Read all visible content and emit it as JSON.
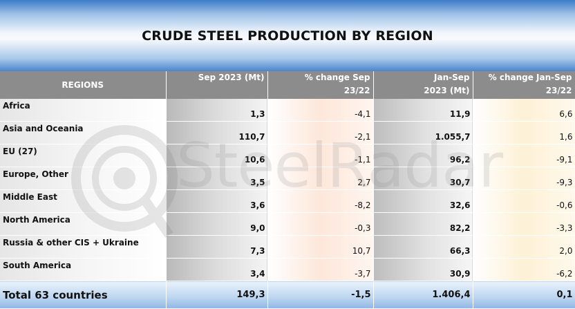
{
  "title": "CRUDE STEEL PRODUCTION BY REGION",
  "watermark": "SteelRadar",
  "headers": {
    "regions": "REGIONS",
    "sep": "Sep 2023 (Mt)",
    "pct_sep_1": "% change Sep",
    "pct_sep_2": "23/22",
    "jan_sep_1": "Jan-Sep",
    "jan_sep_2": "2023 (Mt)",
    "pct_jan_1": "% change Jan-Sep",
    "pct_jan_2": "23/22"
  },
  "rows": [
    {
      "region": "Africa",
      "sep": "1,3",
      "pct_sep": "-4,1",
      "jan_sep": "11,9",
      "pct_jan": "6,6"
    },
    {
      "region": "Asia and Oceania",
      "sep": "110,7",
      "pct_sep": "-2,1",
      "jan_sep": "1.055,7",
      "pct_jan": "1,6"
    },
    {
      "region": "EU (27)",
      "sep": "10,6",
      "pct_sep": "-1,1",
      "jan_sep": "96,2",
      "pct_jan": "-9,1"
    },
    {
      "region": "Europe, Other",
      "sep": "3,5",
      "pct_sep": "2,7",
      "jan_sep": "30,7",
      "pct_jan": "-9,3"
    },
    {
      "region": "Middle East",
      "sep": "3,6",
      "pct_sep": "-8,2",
      "jan_sep": "32,6",
      "pct_jan": "-0,6"
    },
    {
      "region": "North America",
      "sep": "9,0",
      "pct_sep": "-0,3",
      "jan_sep": "82,2",
      "pct_jan": "-3,3"
    },
    {
      "region": "Russia & other CIS + Ukraine",
      "sep": "7,3",
      "pct_sep": "10,7",
      "jan_sep": "66,3",
      "pct_jan": "2,0"
    },
    {
      "region": "South America",
      "sep": "3,4",
      "pct_sep": "-3,7",
      "jan_sep": "30,9",
      "pct_jan": "-6,2"
    }
  ],
  "total": {
    "region": "Total 63 countries",
    "sep": "149,3",
    "pct_sep": "-1,5",
    "jan_sep": "1.406,4",
    "pct_jan": "0,1"
  },
  "colors": {
    "header_bg": "#8c8c8c",
    "title_blue": "#3d7cc7",
    "total_blue": "#8fb6e4"
  }
}
